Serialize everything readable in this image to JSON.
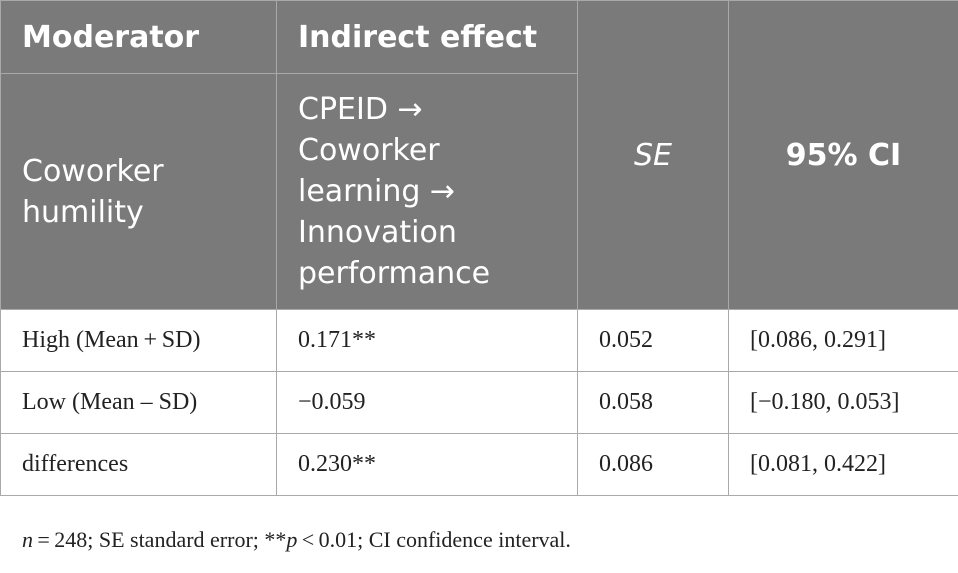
{
  "chart_data": {
    "type": "table",
    "columns": [
      "Moderator",
      "Indirect effect",
      "SE",
      "95% CI"
    ],
    "subheader": {
      "moderator": "Coworker humility",
      "indirect_effect": "CPEID → Coworker learning → Innovation performance"
    },
    "rows": [
      {
        "moderator": "High (Mean + SD)",
        "effect": "0.171**",
        "se": "0.052",
        "ci": "[0.086, 0.291]"
      },
      {
        "moderator": "Low (Mean – SD)",
        "effect": "−0.059",
        "se": "0.058",
        "ci": "[−0.180, 0.053]"
      },
      {
        "moderator": "differences",
        "effect": "0.230**",
        "se": "0.086",
        "ci": "[0.081, 0.422]"
      }
    ]
  },
  "footnote": {
    "n_label": "n",
    "n_text": " = 248; SE standard error; **",
    "p_label": "p",
    "p_text": " < 0.01; CI confidence interval."
  }
}
